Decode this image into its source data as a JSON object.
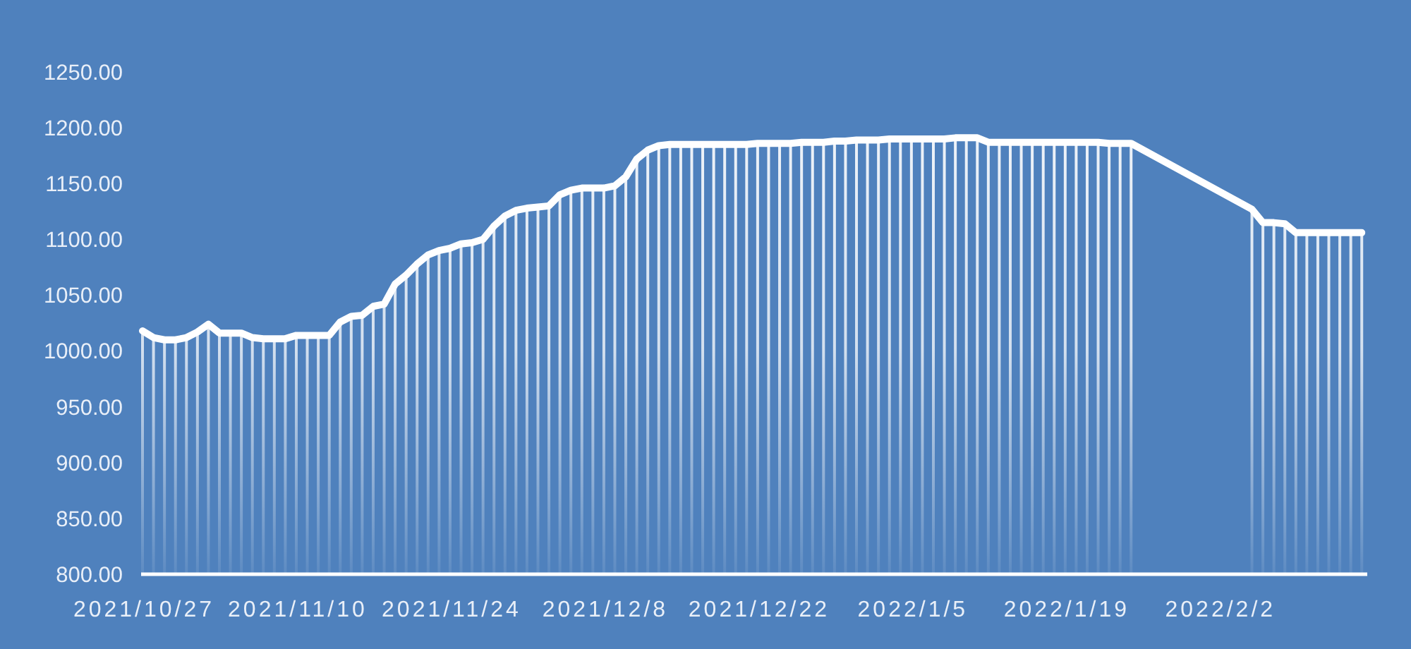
{
  "chart_data": {
    "type": "line",
    "x": [
      "2021-10-27",
      "2021-10-28",
      "2021-10-29",
      "2021-10-30",
      "2021-10-31",
      "2021-11-01",
      "2021-11-02",
      "2021-11-03",
      "2021-11-04",
      "2021-11-05",
      "2021-11-06",
      "2021-11-07",
      "2021-11-08",
      "2021-11-09",
      "2021-11-10",
      "2021-11-11",
      "2021-11-12",
      "2021-11-13",
      "2021-11-14",
      "2021-11-15",
      "2021-11-16",
      "2021-11-17",
      "2021-11-18",
      "2021-11-19",
      "2021-11-20",
      "2021-11-21",
      "2021-11-22",
      "2021-11-23",
      "2021-11-24",
      "2021-11-25",
      "2021-11-26",
      "2021-11-27",
      "2021-11-28",
      "2021-11-29",
      "2021-11-30",
      "2021-12-01",
      "2021-12-02",
      "2021-12-03",
      "2021-12-04",
      "2021-12-05",
      "2021-12-06",
      "2021-12-07",
      "2021-12-08",
      "2021-12-09",
      "2021-12-10",
      "2021-12-11",
      "2021-12-12",
      "2021-12-13",
      "2021-12-14",
      "2021-12-15",
      "2021-12-16",
      "2021-12-17",
      "2021-12-18",
      "2021-12-19",
      "2021-12-20",
      "2021-12-21",
      "2021-12-22",
      "2021-12-23",
      "2021-12-24",
      "2021-12-25",
      "2021-12-26",
      "2021-12-27",
      "2021-12-28",
      "2021-12-29",
      "2021-12-30",
      "2021-12-31",
      "2022-01-01",
      "2022-01-02",
      "2022-01-03",
      "2022-01-04",
      "2022-01-05",
      "2022-01-06",
      "2022-01-07",
      "2022-01-08",
      "2022-01-09",
      "2022-01-10",
      "2022-01-11",
      "2022-01-12",
      "2022-01-13",
      "2022-01-14",
      "2022-01-15",
      "2022-01-16",
      "2022-01-17",
      "2022-01-18",
      "2022-01-19",
      "2022-01-20",
      "2022-01-21",
      "2022-01-22",
      "2022-01-23",
      "2022-01-24",
      "2022-01-25",
      "2022-02-05",
      "2022-02-06",
      "2022-02-07",
      "2022-02-08",
      "2022-02-09",
      "2022-02-10",
      "2022-02-11",
      "2022-02-12",
      "2022-02-13",
      "2022-02-14",
      "2022-02-15"
    ],
    "series": [
      {
        "type": "bar",
        "color": "#ffffff",
        "values": [
          1018,
          1012,
          1010,
          1010,
          1012,
          1017,
          1024,
          1016,
          1016,
          1016,
          1012,
          1011,
          1011,
          1011,
          1014,
          1014,
          1014,
          1014,
          1026,
          1031,
          1032,
          1040,
          1042,
          1060,
          1068,
          1078,
          1086,
          1090,
          1092,
          1096,
          1097,
          1100,
          1112,
          1121,
          1126,
          1128,
          1129,
          1130,
          1140,
          1144,
          1146,
          1146,
          1146,
          1148,
          1156,
          1172,
          1180,
          1184,
          1185,
          1185,
          1185,
          1185,
          1185,
          1185,
          1185,
          1185,
          1186,
          1186,
          1186,
          1186,
          1187,
          1187,
          1187,
          1188,
          1188,
          1189,
          1189,
          1189,
          1190,
          1190,
          1190,
          1190,
          1190,
          1190,
          1191,
          1191,
          1191,
          1187,
          1187,
          1187,
          1187,
          1187,
          1187,
          1187,
          1187,
          1187,
          1187,
          1187,
          1186,
          1186,
          1186,
          1127,
          1115,
          1115,
          1114,
          1106,
          1106,
          1106,
          1106,
          1106,
          1106,
          1106
        ]
      },
      {
        "color": "#ffffff",
        "values": [
          1018,
          1012,
          1010,
          1010,
          1012,
          1017,
          1024,
          1016,
          1016,
          1016,
          1012,
          1011,
          1011,
          1011,
          1014,
          1014,
          1014,
          1014,
          1026,
          1031,
          1032,
          1040,
          1042,
          1060,
          1068,
          1078,
          1086,
          1090,
          1092,
          1096,
          1097,
          1100,
          1112,
          1121,
          1126,
          1128,
          1129,
          1130,
          1140,
          1144,
          1146,
          1146,
          1146,
          1148,
          1156,
          1172,
          1180,
          1184,
          1185,
          1185,
          1185,
          1185,
          1185,
          1185,
          1185,
          1185,
          1186,
          1186,
          1186,
          1186,
          1187,
          1187,
          1187,
          1188,
          1188,
          1189,
          1189,
          1189,
          1190,
          1190,
          1190,
          1190,
          1190,
          1190,
          1191,
          1191,
          1191,
          1187,
          1187,
          1187,
          1187,
          1187,
          1187,
          1187,
          1187,
          1187,
          1187,
          1187,
          1186,
          1186,
          1186,
          1127,
          1115,
          1115,
          1114,
          1106,
          1106,
          1106,
          1106,
          1106,
          1106,
          1106
        ]
      }
    ],
    "xlim": [
      "2021-10-27",
      "2022-02-15T12:00"
    ],
    "xticks": [
      {
        "value": "2021-10-27",
        "label": "2021/10/27"
      },
      {
        "value": "2021-11-10",
        "label": "2021/11/10"
      },
      {
        "value": "2021-11-24",
        "label": "2021/11/24"
      },
      {
        "value": "2021-12-08",
        "label": "2021/12/8"
      },
      {
        "value": "2021-12-22",
        "label": "2021/12/22"
      },
      {
        "value": "2022-01-05",
        "label": "2022/1/5"
      },
      {
        "value": "2022-01-19",
        "label": "2022/1/19"
      },
      {
        "value": "2022-02-02",
        "label": "2022/2/2"
      }
    ],
    "ylim": [
      800,
      1250
    ],
    "yticks": [
      {
        "value": 800,
        "label": "800.00"
      },
      {
        "value": 850,
        "label": "850.00"
      },
      {
        "value": 900,
        "label": "900.00"
      },
      {
        "value": 950,
        "label": "950.00"
      },
      {
        "value": 1000,
        "label": "1000.00"
      },
      {
        "value": 1050,
        "label": "1050.00"
      },
      {
        "value": 1100,
        "label": "1100.00"
      },
      {
        "value": 1150,
        "label": "1150.00"
      },
      {
        "value": 1200,
        "label": "1200.00"
      },
      {
        "value": 1250,
        "label": "1250.00"
      }
    ]
  }
}
